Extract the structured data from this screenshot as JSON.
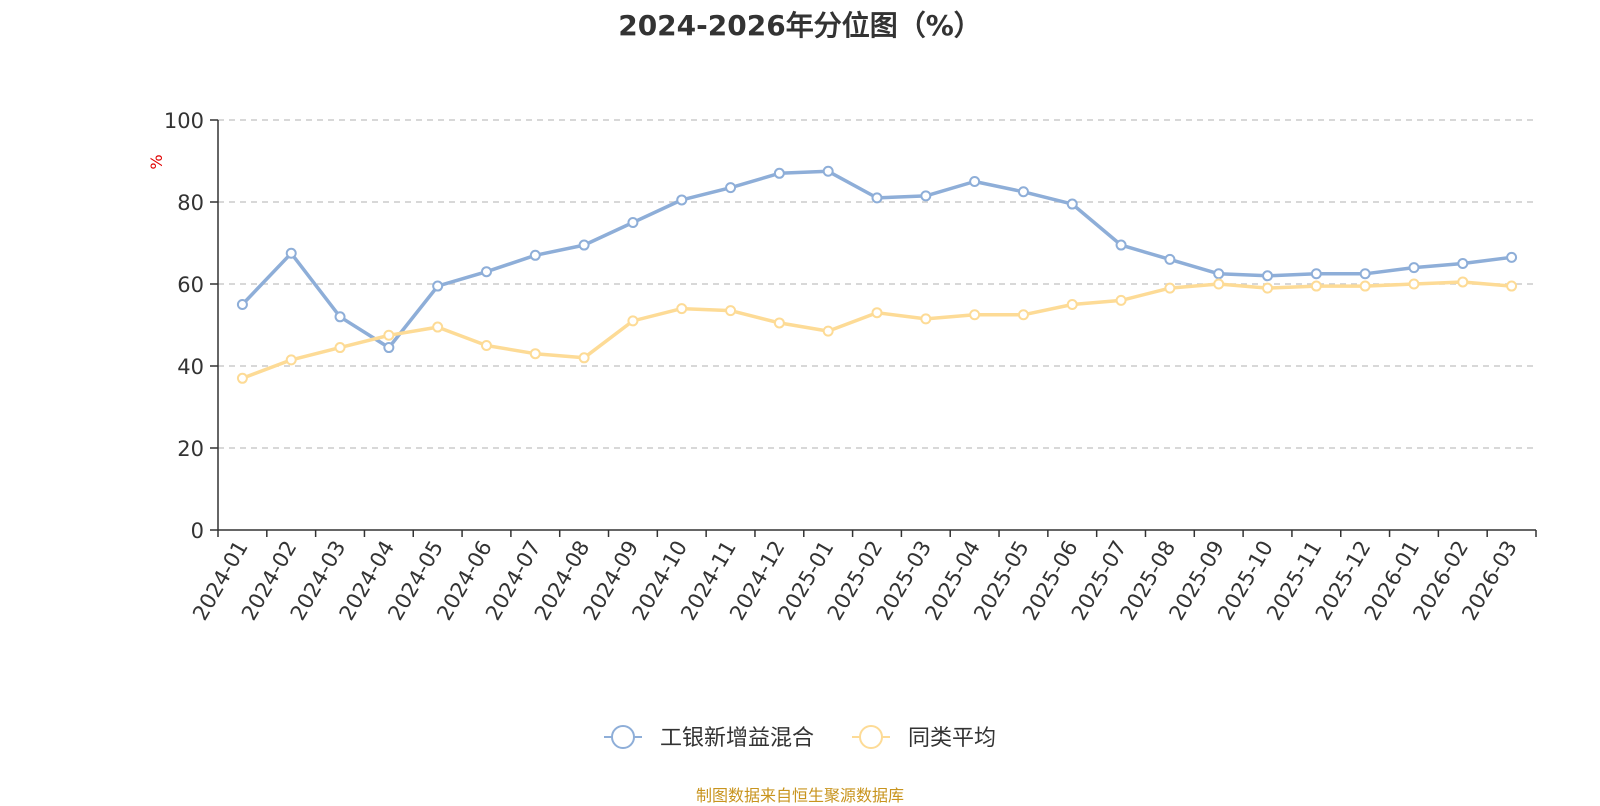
{
  "title": "2024-2026年分位图（%）",
  "source": "制图数据来自恒生聚源数据库",
  "chart_data": {
    "type": "line",
    "title": "2024-2026年分位图（%）",
    "ylabel": "%",
    "ylim": [
      0,
      100
    ],
    "yticks": [
      "0",
      "20",
      "40",
      "60",
      "80",
      "100"
    ],
    "grid": true,
    "legend_position": "bottom-center",
    "categories": [
      "2024-01",
      "2024-02",
      "2024-03",
      "2024-04",
      "2024-05",
      "2024-06",
      "2024-07",
      "2024-08",
      "2024-09",
      "2024-10",
      "2024-11",
      "2024-12",
      "2025-01",
      "2025-02",
      "2025-03",
      "2025-04",
      "2025-05",
      "2025-06",
      "2025-07",
      "2025-08",
      "2025-09",
      "2025-10",
      "2025-11",
      "2025-12",
      "2026-01",
      "2026-02",
      "2026-03"
    ],
    "series": [
      {
        "name": "工银新增益混合",
        "color": "#8eaed8",
        "values": [
          55,
          67.5,
          52,
          44.5,
          59.5,
          63,
          67,
          69.5,
          75,
          80.5,
          83.5,
          87,
          87.5,
          81,
          81.5,
          85,
          82.5,
          79.5,
          69.5,
          66,
          62.5,
          62,
          62.5,
          62.5,
          64,
          65,
          66.5
        ]
      },
      {
        "name": "同类平均",
        "color": "#fddb96",
        "values": [
          37,
          41.5,
          44.5,
          47.5,
          49.5,
          45,
          43,
          42,
          51,
          54,
          53.5,
          50.5,
          48.5,
          53,
          51.5,
          52.5,
          52.5,
          55,
          56,
          59,
          60,
          59,
          59.5,
          59.5,
          60,
          60.5,
          59.5
        ]
      }
    ]
  }
}
